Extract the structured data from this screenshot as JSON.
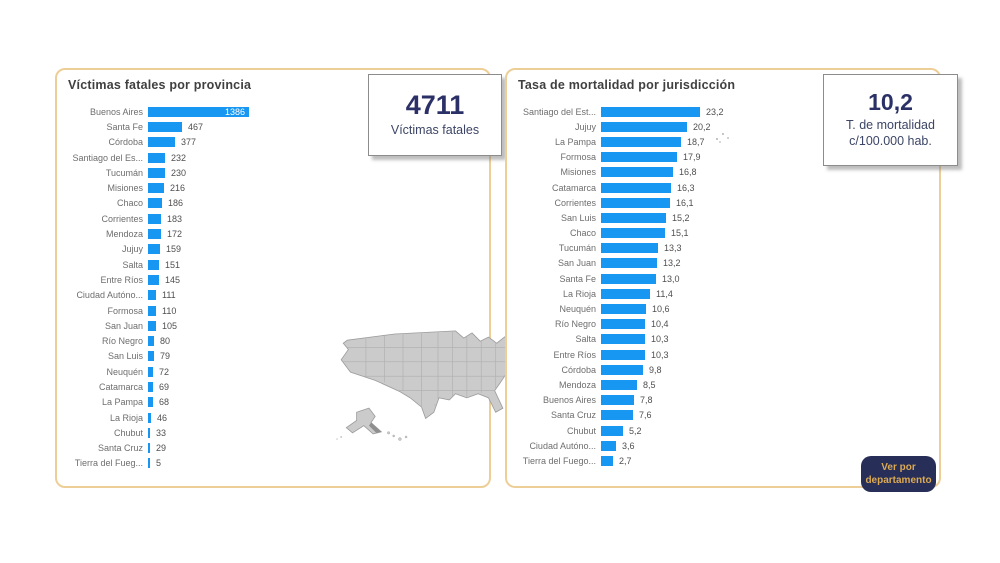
{
  "page": {
    "background": "#ffffff"
  },
  "colors": {
    "bar": "#1797f2",
    "panel_border": "#edce96",
    "kpi_number": "#2b3166",
    "button_bg": "#272e58",
    "button_text": "#dcaa52",
    "map_fill": "#cbcbcb",
    "map_stroke": "#b2b2b2"
  },
  "kpi_cards": [
    {
      "value": "4711",
      "label": "Víctimas fatales"
    },
    {
      "value": "10,2",
      "label_line1": "T. de mortalidad",
      "label_line2": "c/100.000 hab."
    }
  ],
  "button": {
    "label_line1": "Ver por",
    "label_line2": "departamento"
  },
  "map": {
    "name": "usa-states-map"
  },
  "chart_data": [
    {
      "type": "bar",
      "orientation": "horizontal",
      "title": "Víctimas fatales por provincia",
      "xlabel": "",
      "ylabel": "",
      "xlim": [
        0,
        1386
      ],
      "grid": false,
      "legend": false,
      "bar_color": "#1797f2",
      "categories": [
        "Buenos Aires",
        "Santa Fe",
        "Córdoba",
        "Santiago del Es...",
        "Tucumán",
        "Misiones",
        "Chaco",
        "Corrientes",
        "Mendoza",
        "Jujuy",
        "Salta",
        "Entre Ríos",
        "Ciudad Autóno...",
        "Formosa",
        "San Juan",
        "Río Negro",
        "San Luis",
        "Neuquén",
        "Catamarca",
        "La Pampa",
        "La Rioja",
        "Chubut",
        "Santa Cruz",
        "Tierra del Fueg..."
      ],
      "values": [
        1386,
        467,
        377,
        232,
        230,
        216,
        186,
        183,
        172,
        159,
        151,
        145,
        111,
        110,
        105,
        80,
        79,
        72,
        69,
        68,
        46,
        33,
        29,
        5
      ],
      "value_labels": [
        "1386",
        "467",
        "377",
        "232",
        "230",
        "216",
        "186",
        "183",
        "172",
        "159",
        "151",
        "145",
        "111",
        "110",
        "105",
        "80",
        "79",
        "72",
        "69",
        "68",
        "46",
        "33",
        "29",
        "5"
      ],
      "inside_label_indices": [
        0
      ]
    },
    {
      "type": "bar",
      "orientation": "horizontal",
      "title": "Tasa de mortalidad por jurisdicción",
      "xlabel": "",
      "ylabel": "",
      "xlim": [
        0,
        23.2
      ],
      "grid": false,
      "legend": false,
      "bar_color": "#1797f2",
      "categories": [
        "Santiago del Est...",
        "Jujuy",
        "La Pampa",
        "Formosa",
        "Misiones",
        "Catamarca",
        "Corrientes",
        "San Luis",
        "Chaco",
        "Tucumán",
        "San Juan",
        "Santa Fe",
        "La Rioja",
        "Neuquén",
        "Río Negro",
        "Salta",
        "Entre Ríos",
        "Córdoba",
        "Mendoza",
        "Buenos Aires",
        "Santa Cruz",
        "Chubut",
        "Ciudad Autóno...",
        "Tierra del Fuego..."
      ],
      "values": [
        23.2,
        20.2,
        18.7,
        17.9,
        16.8,
        16.3,
        16.1,
        15.2,
        15.1,
        13.3,
        13.2,
        13.0,
        11.4,
        10.6,
        10.4,
        10.3,
        10.3,
        9.8,
        8.5,
        7.8,
        7.6,
        5.2,
        3.6,
        2.7
      ],
      "value_labels": [
        "23,2",
        "20,2",
        "18,7",
        "17,9",
        "16,8",
        "16,3",
        "16,1",
        "15,2",
        "15,1",
        "13,3",
        "13,2",
        "13,0",
        "11,4",
        "10,6",
        "10,4",
        "10,3",
        "10,3",
        "9,8",
        "8,5",
        "7,8",
        "7,6",
        "5,2",
        "3,6",
        "2,7"
      ],
      "inside_label_indices": []
    }
  ]
}
